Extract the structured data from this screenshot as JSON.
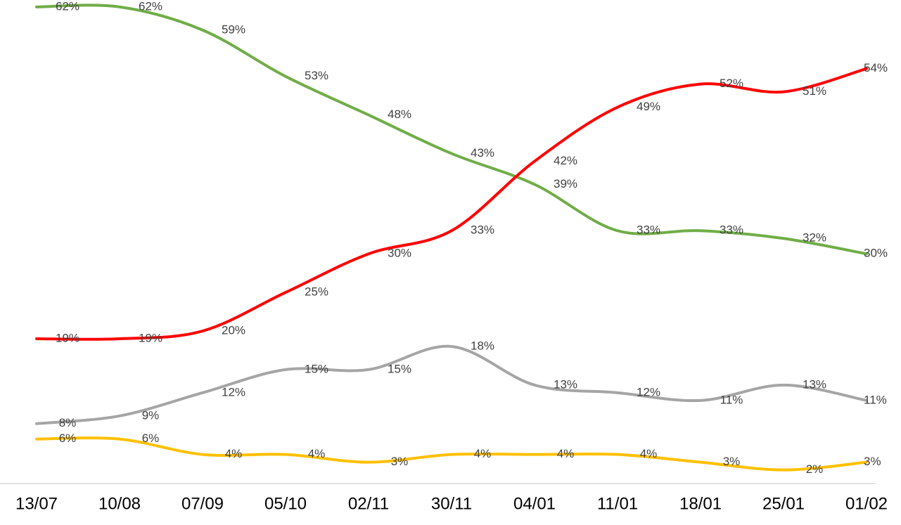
{
  "chart_data": {
    "type": "line",
    "categories": [
      "13/07",
      "10/08",
      "07/09",
      "05/10",
      "02/11",
      "30/11",
      "04/01",
      "11/01",
      "18/01",
      "25/01",
      "01/02"
    ],
    "series": [
      {
        "color": "#70ad47",
        "values": [
          62,
          62,
          59,
          53,
          48,
          43,
          39,
          33,
          33,
          32,
          30
        ],
        "value_labels": [
          "62%",
          "62%",
          "59%",
          "53%",
          "48%",
          "43%",
          "39%",
          "33%",
          "33%",
          "32%",
          "30%"
        ]
      },
      {
        "color": "#ff0000",
        "values": [
          19,
          19,
          20,
          25,
          30,
          33,
          42,
          49,
          52,
          51,
          54
        ],
        "value_labels": [
          "19%",
          "19%",
          "20%",
          "25%",
          "30%",
          "33%",
          "42%",
          "49%",
          "52%",
          "51%",
          "54%"
        ]
      },
      {
        "color": "#a5a5a5",
        "values": [
          8,
          9,
          12,
          15,
          15,
          18,
          13,
          12,
          11,
          13,
          11
        ],
        "value_labels": [
          "8%",
          "9%",
          "12%",
          "15%",
          "15%",
          "18%",
          "13%",
          "12%",
          "11%",
          "13%",
          "11%"
        ]
      },
      {
        "color": "#ffc000",
        "values": [
          6,
          6,
          4,
          4,
          3,
          4,
          4,
          4,
          3,
          2,
          3
        ],
        "value_labels": [
          "6%",
          "6%",
          "4%",
          "4%",
          "3%",
          "4%",
          "4%",
          "4%",
          "3%",
          "2%",
          "3%"
        ]
      }
    ]
  }
}
